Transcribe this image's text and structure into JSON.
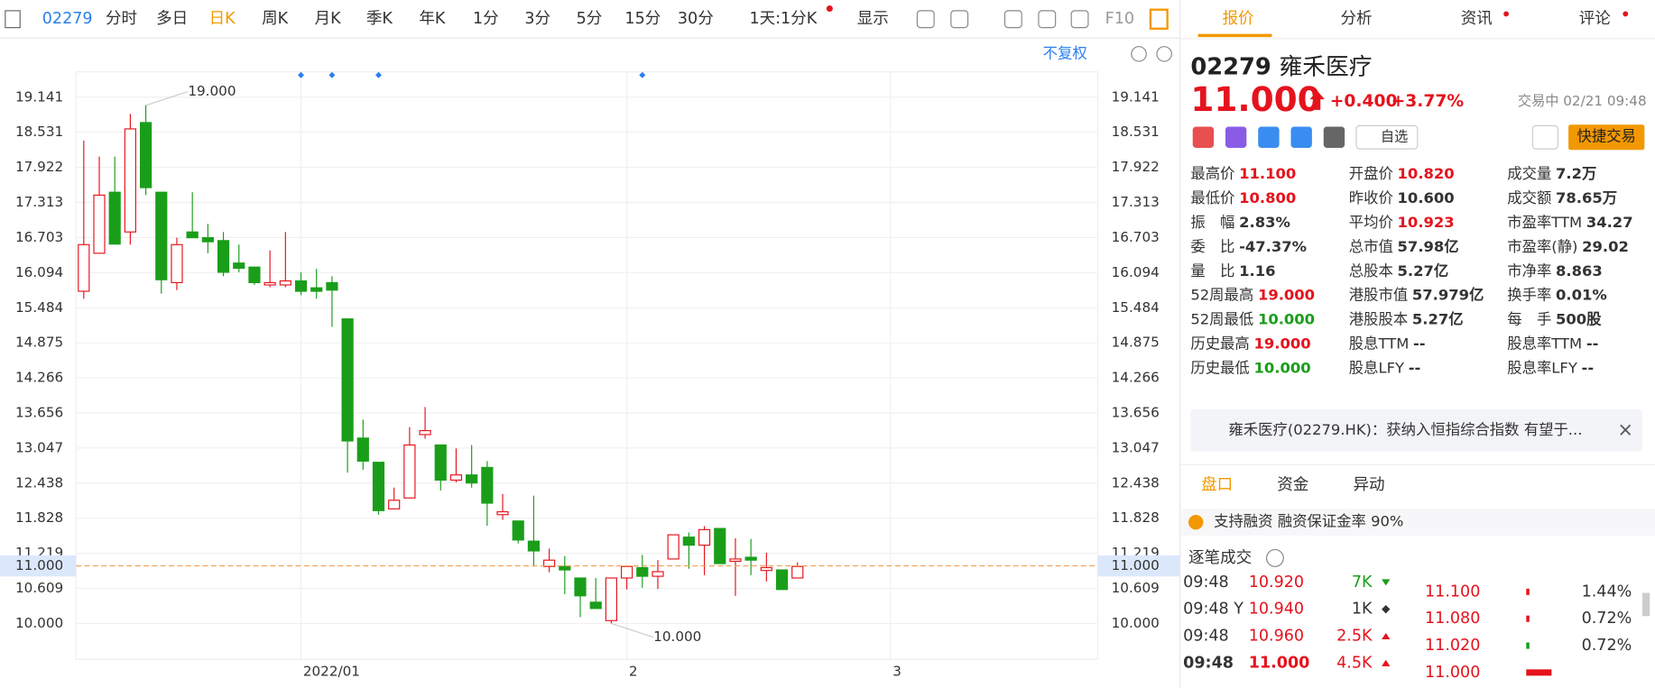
{
  "toolbar": {
    "code": "02279",
    "tabs": [
      "分时",
      "多日",
      "日K",
      "周K",
      "月K",
      "季K",
      "年K",
      "1分",
      "3分",
      "5分",
      "15分",
      "30分"
    ],
    "active": 2,
    "period": "1天:1分K",
    "display": "显示",
    "f10": "F10",
    "adjust": "不复权"
  },
  "chart_data": {
    "type": "candlestick",
    "up_color": "#e5131d",
    "down_color": "#1a9e1a",
    "grid": true,
    "open": [
      15.77,
      16.43,
      17.49,
      16.8,
      18.7,
      17.49,
      15.92,
      16.8,
      16.7,
      16.65,
      16.26,
      16.19,
      15.88,
      15.88,
      15.95,
      15.83,
      15.92,
      15.29,
      13.22,
      12.8,
      11.99,
      12.18,
      13.28,
      13.1,
      12.49,
      12.58,
      12.71,
      11.89,
      11.78,
      11.43,
      10.99,
      10.99,
      10.79,
      10.37,
      10.05,
      10.79,
      10.97,
      10.82,
      11.12,
      11.5,
      11.36,
      11.65,
      11.08,
      11.15,
      10.92,
      10.93,
      10.79
    ],
    "high": [
      18.39,
      18.11,
      18.11,
      18.85,
      19.0,
      17.49,
      16.7,
      17.49,
      16.94,
      16.8,
      16.58,
      16.19,
      16.48,
      16.8,
      16.1,
      16.16,
      16.03,
      15.29,
      13.54,
      12.8,
      12.36,
      13.41,
      13.76,
      13.1,
      13.04,
      13.1,
      12.82,
      12.25,
      11.78,
      12.22,
      11.3,
      11.17,
      10.79,
      10.79,
      10.79,
      10.99,
      11.19,
      11.1,
      11.54,
      11.58,
      11.69,
      11.65,
      11.48,
      11.47,
      11.23,
      10.93,
      11.06
    ],
    "low": [
      15.64,
      16.43,
      16.58,
      16.58,
      17.44,
      15.73,
      15.79,
      16.7,
      16.43,
      16.03,
      16.1,
      15.88,
      15.84,
      15.84,
      15.7,
      15.64,
      15.15,
      12.62,
      12.67,
      11.89,
      11.99,
      12.18,
      13.21,
      12.31,
      12.45,
      12.36,
      11.7,
      11.8,
      11.39,
      10.99,
      10.89,
      10.51,
      10.11,
      10.26,
      10.0,
      10.59,
      10.62,
      10.6,
      11.12,
      10.95,
      10.84,
      11.04,
      10.48,
      10.84,
      10.73,
      10.59,
      10.79
    ],
    "close": [
      16.58,
      17.44,
      16.59,
      18.59,
      17.57,
      15.97,
      16.58,
      16.7,
      16.63,
      16.1,
      16.17,
      15.92,
      15.92,
      15.95,
      15.77,
      15.77,
      15.79,
      13.17,
      12.82,
      11.96,
      12.14,
      13.1,
      13.35,
      12.49,
      12.58,
      12.44,
      12.09,
      11.94,
      11.45,
      11.26,
      11.1,
      10.93,
      10.48,
      10.26,
      10.79,
      10.99,
      10.82,
      10.9,
      11.54,
      11.36,
      11.63,
      11.04,
      11.12,
      11.1,
      10.97,
      10.59,
      10.99
    ],
    "xlim": [
      -0.5,
      65.35
    ],
    "xticks": [
      {
        "value": 14,
        "label": "2022/01"
      },
      {
        "value": 35,
        "label": "2"
      },
      {
        "value": 52,
        "label": "3"
      }
    ],
    "ylim": [
      9.377,
      19.58
    ],
    "yticks": [
      {
        "value": 19.141,
        "label": "19.141"
      },
      {
        "value": 18.531,
        "label": "18.531"
      },
      {
        "value": 17.922,
        "label": "17.922"
      },
      {
        "value": 17.313,
        "label": "17.313"
      },
      {
        "value": 16.703,
        "label": "16.703"
      },
      {
        "value": 16.094,
        "label": "16.094"
      },
      {
        "value": 15.484,
        "label": "15.484"
      },
      {
        "value": 14.875,
        "label": "14.875"
      },
      {
        "value": 14.266,
        "label": "14.266"
      },
      {
        "value": 13.656,
        "label": "13.656"
      },
      {
        "value": 13.047,
        "label": "13.047"
      },
      {
        "value": 12.438,
        "label": "12.438"
      },
      {
        "value": 11.828,
        "label": "11.828"
      },
      {
        "value": 11.219,
        "label": "11.219"
      },
      {
        "value": 10.609,
        "label": "10.609"
      },
      {
        "value": 10,
        "label": "10.000"
      }
    ],
    "last_price": {
      "value": 11,
      "label": "11.000"
    },
    "annotations": [
      {
        "x": 4,
        "y": 19,
        "label": "19.000"
      },
      {
        "x": 34,
        "y": 10,
        "label": "10.000"
      }
    ],
    "events": [
      14,
      16,
      19,
      36
    ]
  },
  "panel": {
    "tabs": [
      "报价",
      "分析",
      "资讯",
      "评论"
    ],
    "code": "02279",
    "name": "雍禾医疗",
    "price": "11.000",
    "change": "+0.400",
    "pct": "+3.77%",
    "status": "交易中 02/21 09:48",
    "watch": "自选",
    "trade": "快捷交易",
    "stats": [
      [
        {
          "label": "最高价",
          "value": "11.100",
          "color": "#e5131d"
        },
        {
          "label": "最低价",
          "value": "10.800",
          "color": "#e5131d"
        },
        {
          "label": "振　幅",
          "value": "2.83%"
        },
        {
          "label": "委　比",
          "value": "-47.37%"
        },
        {
          "label": "量　比",
          "value": "1.16"
        },
        {
          "label": "52周最高",
          "value": "19.000",
          "color": "#e5131d"
        },
        {
          "label": "52周最低",
          "value": "10.000",
          "color": "#1a9e1a"
        },
        {
          "label": "历史最高",
          "value": "19.000",
          "color": "#e5131d"
        },
        {
          "label": "历史最低",
          "value": "10.000",
          "color": "#1a9e1a"
        }
      ],
      [
        {
          "label": "开盘价",
          "value": "10.820",
          "color": "#e5131d"
        },
        {
          "label": "昨收价",
          "value": "10.600"
        },
        {
          "label": "平均价",
          "value": "10.923",
          "color": "#e5131d"
        },
        {
          "label": "总市值",
          "value": "57.98亿"
        },
        {
          "label": "总股本",
          "value": "5.27亿"
        },
        {
          "label": "港股市值",
          "value": "57.979亿"
        },
        {
          "label": "港股股本",
          "value": "5.27亿"
        },
        {
          "label": "股息TTM",
          "value": "--"
        },
        {
          "label": "股息LFY",
          "value": "--"
        }
      ],
      [
        {
          "label": "成交量",
          "value": "7.2万"
        },
        {
          "label": "成交额",
          "value": "78.65万"
        },
        {
          "label": "市盈率TTM",
          "value": "34.27"
        },
        {
          "label": "市盈率(静)",
          "value": "29.02"
        },
        {
          "label": "市净率",
          "value": "8.863"
        },
        {
          "label": "换手率",
          "value": "0.01%"
        },
        {
          "label": "每　手",
          "value": "500股"
        },
        {
          "label": "股息率TTM",
          "value": "--"
        },
        {
          "label": "股息率LFY",
          "value": "--"
        }
      ]
    ],
    "news": "雍禾医疗(02279.HK)：获纳入恒指综合指数 有望于...",
    "subtabs": [
      "盘口",
      "资金",
      "异动"
    ],
    "margin": "支持融资 融资保证金率 90%",
    "ticks_title": "逐笔成交",
    "trades": [
      {
        "time": "09:48",
        "price": "10.920",
        "vol": "7K",
        "dir": "down"
      },
      {
        "time": "09:48 Y",
        "price": "10.940",
        "vol": "1K",
        "dir": "flat"
      },
      {
        "time": "09:48",
        "price": "10.960",
        "vol": "2.5K",
        "dir": "up"
      },
      {
        "time": "09:48",
        "price": "11.000",
        "vol": "4.5K",
        "dir": "up"
      }
    ],
    "depth": [
      {
        "price": "11.100",
        "pct": "1.44%"
      },
      {
        "price": "11.080",
        "pct": "0.72%"
      },
      {
        "price": "11.020",
        "pct": "0.72%"
      },
      {
        "price": "11.000"
      }
    ]
  }
}
